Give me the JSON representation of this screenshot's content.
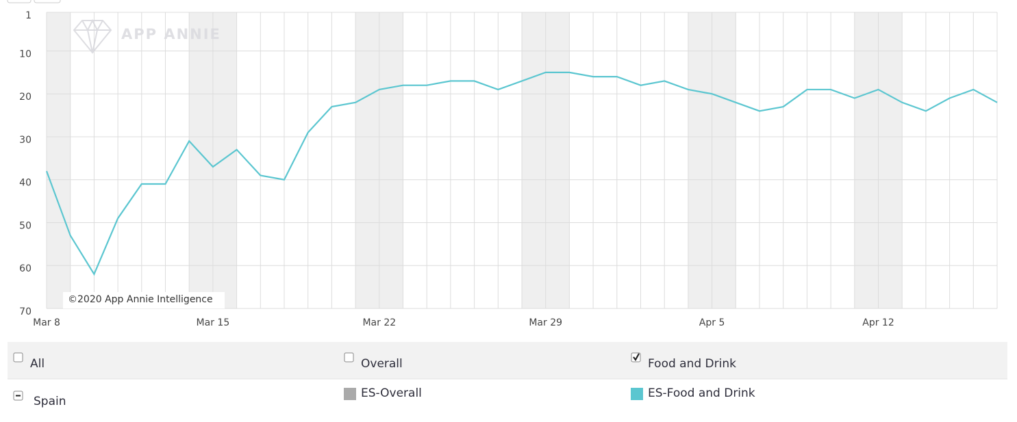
{
  "chart_data": {
    "type": "line",
    "watermark": "APP ANNIE",
    "copyright": "©2020 App Annie Intelligence",
    "categories": [
      "Mar 8",
      null,
      null,
      null,
      null,
      null,
      null,
      "Mar 15",
      null,
      null,
      null,
      null,
      null,
      null,
      "Mar 22",
      null,
      null,
      null,
      null,
      null,
      null,
      "Mar 29",
      null,
      null,
      null,
      null,
      null,
      null,
      "Apr 5",
      null,
      null,
      null,
      null,
      null,
      null,
      "Apr 12",
      null,
      null,
      null,
      null,
      null
    ],
    "series": [
      {
        "name": "ES-Overall",
        "color": "#aaaaaa",
        "values": [
          null,
          null,
          null,
          null,
          null,
          null,
          null,
          null,
          null,
          null,
          null,
          null,
          null,
          null,
          null,
          null,
          null,
          null,
          null,
          null,
          null,
          null,
          null,
          null,
          null,
          null,
          null,
          null,
          null,
          null,
          null,
          null,
          null,
          null,
          null,
          null,
          null,
          null,
          null,
          null,
          null
        ]
      },
      {
        "name": "ES-Food and Drink",
        "color": "#5bc6d0",
        "values": [
          38,
          53,
          62,
          49,
          41,
          41,
          31,
          37,
          33,
          39,
          40,
          29,
          23,
          22,
          19,
          18,
          18,
          17,
          17,
          19,
          17,
          15,
          15,
          16,
          16,
          18,
          17,
          19,
          20,
          22,
          24,
          23,
          19,
          19,
          21,
          19,
          22,
          24,
          21,
          19,
          22
        ]
      }
    ],
    "ylim": [
      1,
      70
    ],
    "y_inverted": true,
    "yticks": [
      1,
      10,
      20,
      30,
      40,
      50,
      60,
      70
    ],
    "grid": true,
    "filters": [
      {
        "label": "All",
        "checked": false
      },
      {
        "label": "Overall",
        "checked": false
      },
      {
        "label": "Food and Drink",
        "checked": true
      }
    ],
    "group": "Spain"
  }
}
